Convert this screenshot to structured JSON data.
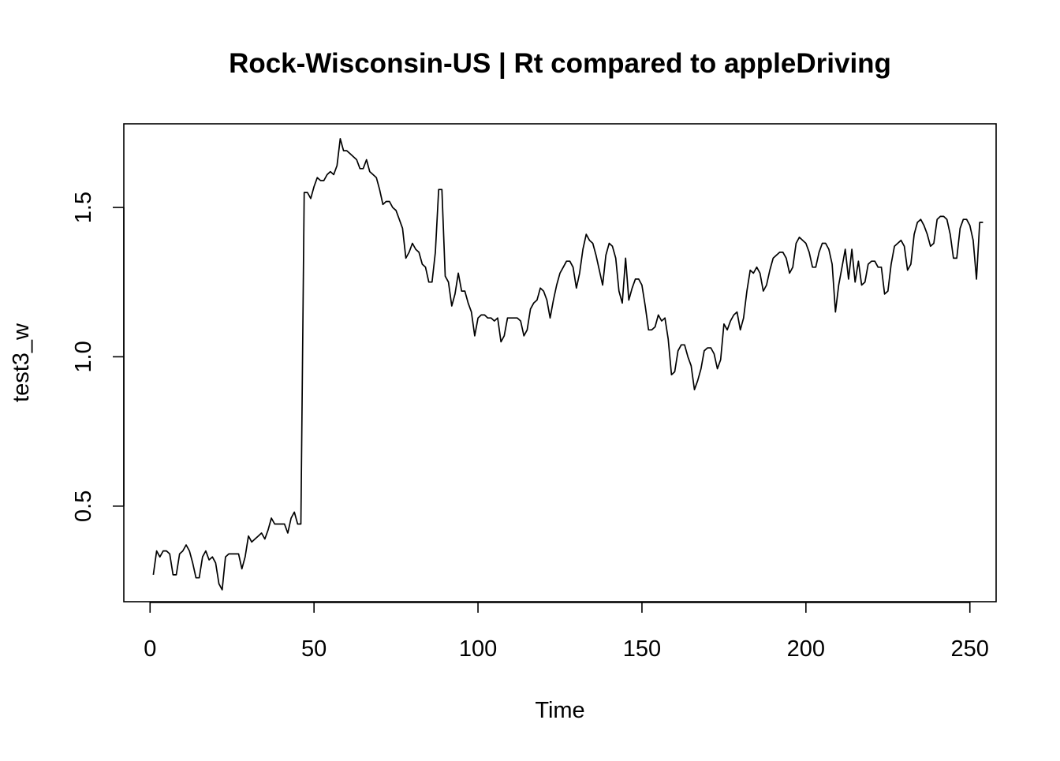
{
  "chart_data": {
    "type": "line",
    "title": "Rock-Wisconsin-US | Rt compared to appleDriving",
    "xlabel": "Time",
    "ylabel": "test3_w",
    "xlim": [
      -8,
      258
    ],
    "ylim": [
      0.18,
      1.78
    ],
    "x_ticks": [
      0,
      50,
      100,
      150,
      200,
      250
    ],
    "x_tick_labels": [
      "0",
      "50",
      "100",
      "150",
      "200",
      "250"
    ],
    "y_ticks": [
      0.5,
      1.0,
      1.5
    ],
    "y_tick_labels": [
      "0.5",
      "1.0",
      "1.5"
    ],
    "grid": false,
    "legend": "none",
    "line_color": "#000000",
    "series": [
      {
        "x_start": 1,
        "values": [
          0.27,
          0.35,
          0.33,
          0.35,
          0.35,
          0.34,
          0.27,
          0.27,
          0.34,
          0.35,
          0.37,
          0.35,
          0.31,
          0.26,
          0.26,
          0.33,
          0.35,
          0.32,
          0.33,
          0.31,
          0.24,
          0.22,
          0.33,
          0.34,
          0.34,
          0.34,
          0.34,
          0.29,
          0.33,
          0.4,
          0.38,
          0.39,
          0.4,
          0.41,
          0.39,
          0.42,
          0.46,
          0.44,
          0.44,
          0.44,
          0.44,
          0.41,
          0.46,
          0.48,
          0.44,
          0.44,
          1.55,
          1.55,
          1.53,
          1.57,
          1.6,
          1.59,
          1.59,
          1.61,
          1.62,
          1.61,
          1.64,
          1.73,
          1.69,
          1.69,
          1.68,
          1.67,
          1.66,
          1.63,
          1.63,
          1.66,
          1.62,
          1.61,
          1.6,
          1.56,
          1.51,
          1.52,
          1.52,
          1.5,
          1.49,
          1.46,
          1.43,
          1.33,
          1.35,
          1.38,
          1.36,
          1.35,
          1.31,
          1.3,
          1.25,
          1.25,
          1.35,
          1.56,
          1.56,
          1.27,
          1.25,
          1.17,
          1.21,
          1.28,
          1.22,
          1.22,
          1.18,
          1.15,
          1.07,
          1.13,
          1.14,
          1.14,
          1.13,
          1.13,
          1.12,
          1.13,
          1.05,
          1.07,
          1.13,
          1.13,
          1.13,
          1.13,
          1.12,
          1.07,
          1.09,
          1.16,
          1.18,
          1.19,
          1.23,
          1.22,
          1.19,
          1.13,
          1.19,
          1.24,
          1.28,
          1.3,
          1.32,
          1.32,
          1.3,
          1.23,
          1.28,
          1.36,
          1.41,
          1.39,
          1.38,
          1.34,
          1.29,
          1.24,
          1.34,
          1.38,
          1.37,
          1.33,
          1.22,
          1.18,
          1.33,
          1.19,
          1.23,
          1.26,
          1.26,
          1.24,
          1.17,
          1.09,
          1.09,
          1.1,
          1.14,
          1.12,
          1.13,
          1.06,
          0.94,
          0.95,
          1.02,
          1.04,
          1.04,
          1.0,
          0.97,
          0.89,
          0.92,
          0.96,
          1.02,
          1.03,
          1.03,
          1.01,
          0.96,
          0.99,
          1.11,
          1.09,
          1.12,
          1.14,
          1.15,
          1.09,
          1.13,
          1.22,
          1.29,
          1.28,
          1.3,
          1.28,
          1.22,
          1.24,
          1.29,
          1.33,
          1.34,
          1.35,
          1.35,
          1.33,
          1.28,
          1.3,
          1.38,
          1.4,
          1.39,
          1.38,
          1.35,
          1.3,
          1.3,
          1.35,
          1.38,
          1.38,
          1.36,
          1.31,
          1.15,
          1.24,
          1.3,
          1.36,
          1.26,
          1.36,
          1.25,
          1.32,
          1.24,
          1.25,
          1.31,
          1.32,
          1.32,
          1.3,
          1.3,
          1.21,
          1.22,
          1.31,
          1.37,
          1.38,
          1.39,
          1.37,
          1.29,
          1.31,
          1.41,
          1.45,
          1.46,
          1.44,
          1.41,
          1.37,
          1.38,
          1.46,
          1.47,
          1.47,
          1.46,
          1.41,
          1.33,
          1.33,
          1.43,
          1.46,
          1.46,
          1.44,
          1.39,
          1.26,
          1.45,
          1.45
        ]
      }
    ]
  }
}
